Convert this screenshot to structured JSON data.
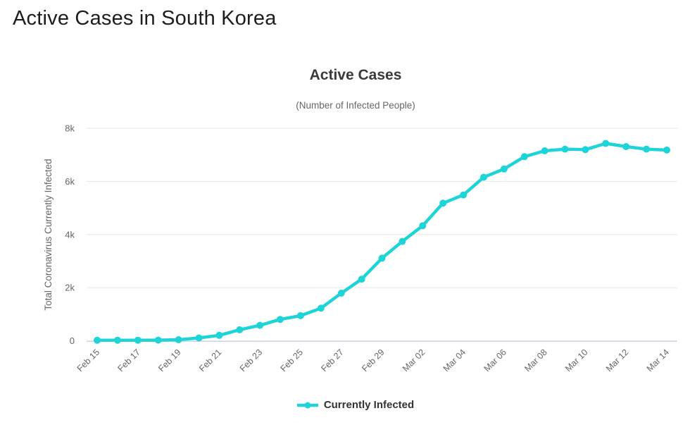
{
  "page": {
    "title": "Active Cases in South Korea"
  },
  "chart_data": {
    "type": "line",
    "title": "Active Cases",
    "subtitle": "(Number of Infected People)",
    "xlabel": "",
    "ylabel": "Total Coronavirus Currently Infected",
    "x": [
      "Feb 15",
      "Feb 16",
      "Feb 17",
      "Feb 18",
      "Feb 19",
      "Feb 20",
      "Feb 21",
      "Feb 22",
      "Feb 23",
      "Feb 24",
      "Feb 25",
      "Feb 26",
      "Feb 27",
      "Feb 28",
      "Feb 29",
      "Mar 01",
      "Mar 02",
      "Mar 03",
      "Mar 04",
      "Mar 05",
      "Mar 06",
      "Mar 07",
      "Mar 08",
      "Mar 09",
      "Mar 10",
      "Mar 11",
      "Mar 12",
      "Mar 13",
      "Mar 14"
    ],
    "x_tick_step": 2,
    "series": [
      {
        "name": "Currently Infected",
        "color": "#1fd4d6",
        "values": [
          19,
          20,
          21,
          25,
          40,
          105,
          205,
          415,
          580,
          805,
          945,
          1225,
          1790,
          2320,
          3110,
          3740,
          4330,
          5180,
          5490,
          6155,
          6470,
          6930,
          7150,
          7215,
          7195,
          7430,
          7310,
          7215,
          7180
        ]
      }
    ],
    "ylim": [
      0,
      8000
    ],
    "yticks": [
      0,
      2000,
      4000,
      6000,
      8000
    ],
    "ytick_labels": [
      "0",
      "2k",
      "4k",
      "6k",
      "8k"
    ],
    "grid": true,
    "legend_position": "bottom",
    "colors": {
      "gridline": "#e6e6e6",
      "axis_line": "#ccd6eb",
      "tick_label": "#666666",
      "axis_title": "#666666",
      "legend_text": "#333333"
    }
  }
}
